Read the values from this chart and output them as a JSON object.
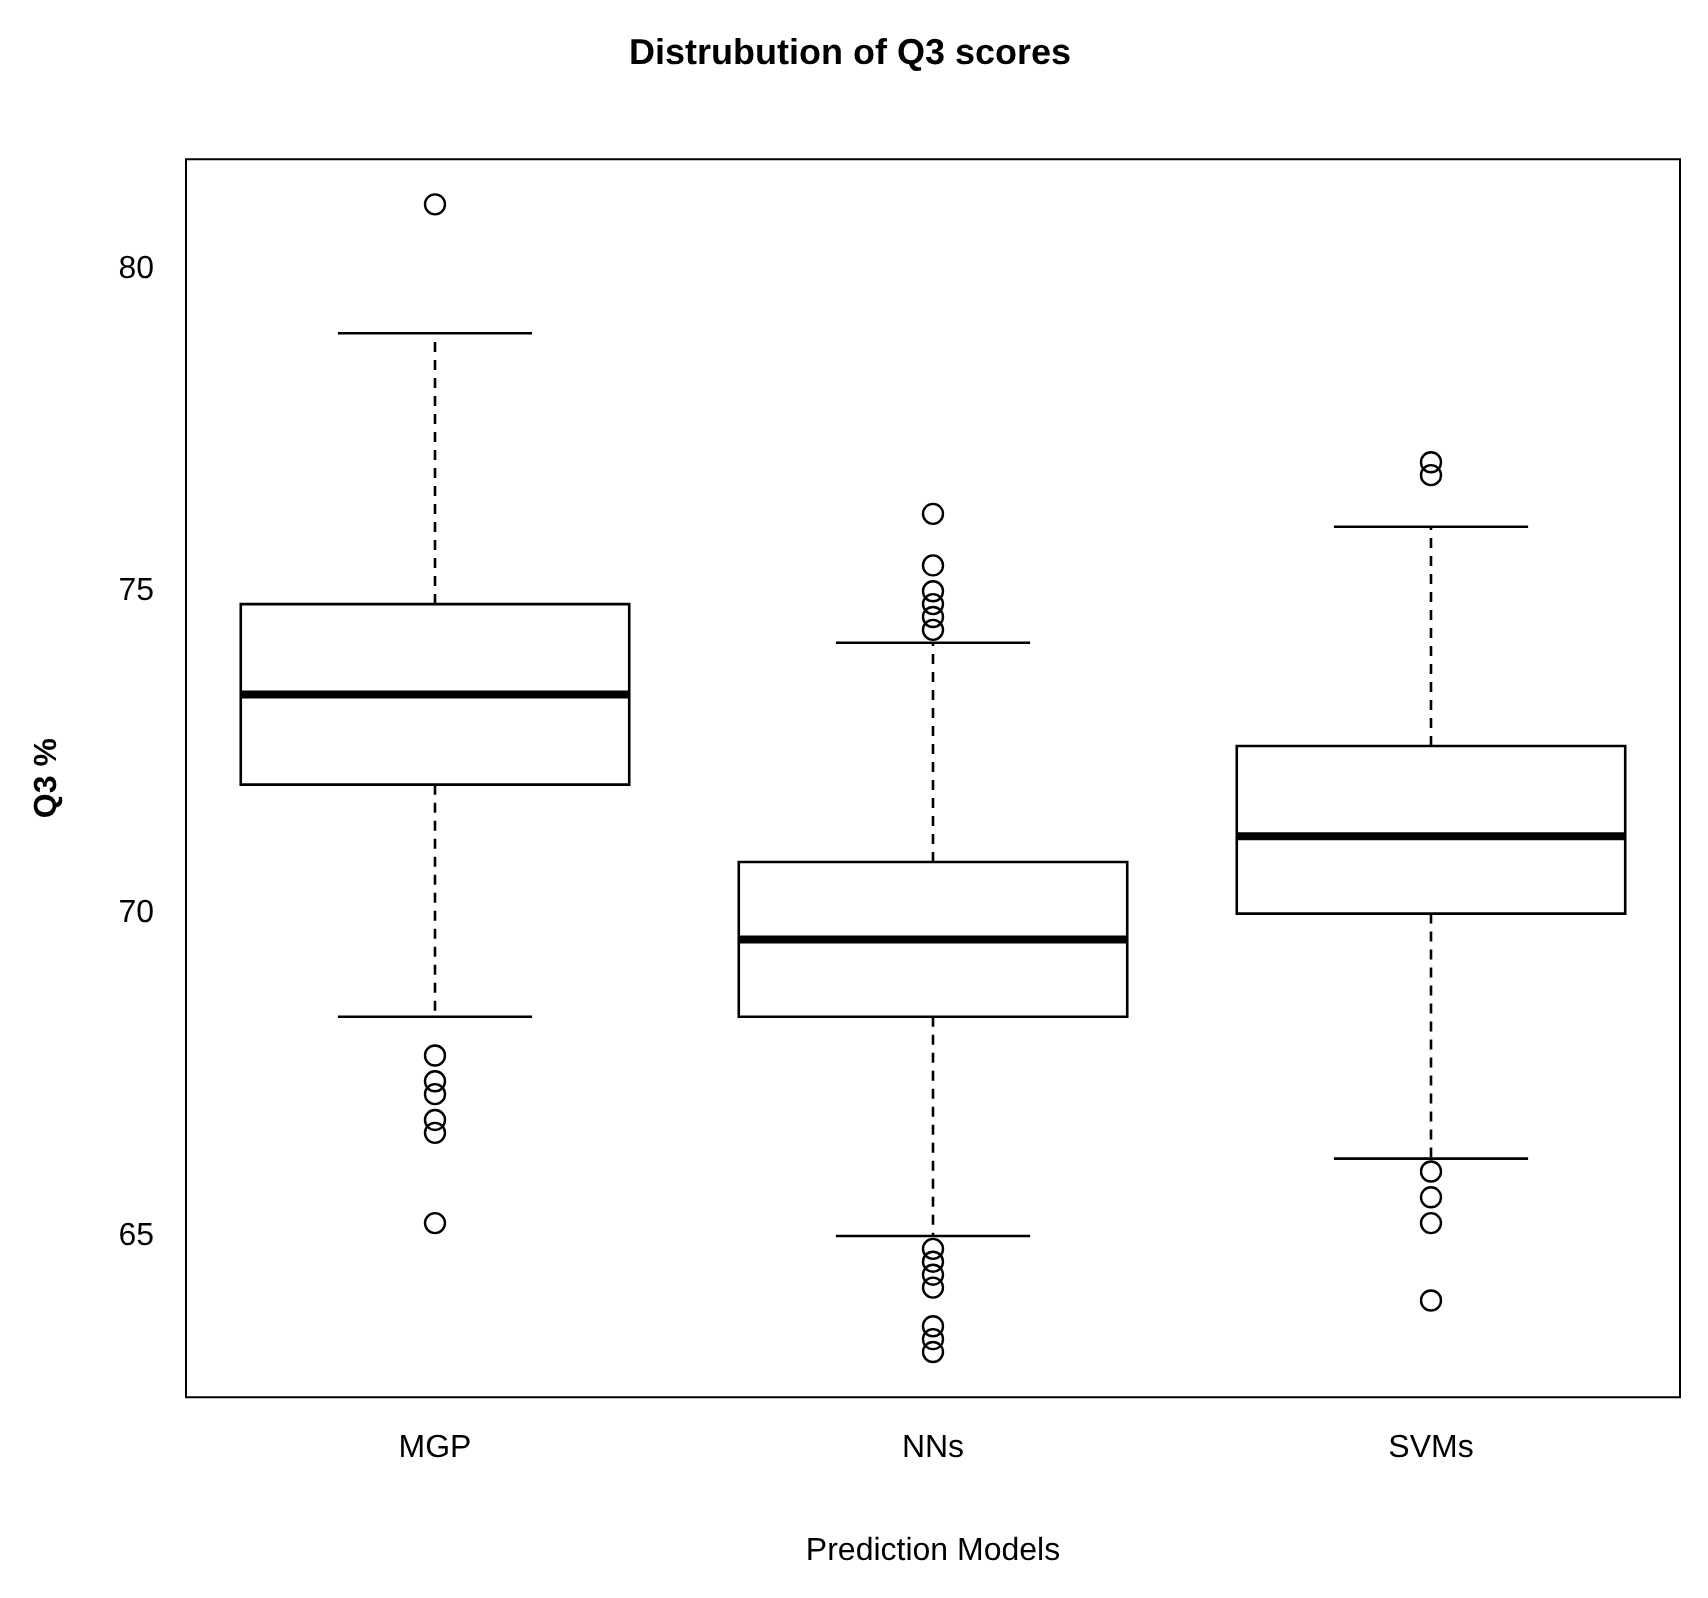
{
  "chart_data": {
    "type": "box",
    "title": "Distrubution of Q3 scores",
    "xlabel": "Prediction Models",
    "ylabel": "Q3 %",
    "categories": [
      "MGP",
      "NNs",
      "SVMs"
    ],
    "boxes": [
      {
        "low": 68.4,
        "q1": 72.0,
        "median": 73.4,
        "q3": 74.8,
        "high": 79.0,
        "outliers": [
          81.0,
          67.8,
          67.4,
          67.2,
          66.8,
          66.6,
          65.2
        ]
      },
      {
        "low": 65.0,
        "q1": 68.4,
        "median": 69.6,
        "q3": 70.8,
        "high": 74.2,
        "outliers": [
          76.2,
          75.4,
          75.0,
          74.8,
          74.6,
          74.4,
          64.8,
          64.6,
          64.4,
          64.2,
          63.6,
          63.4,
          63.2
        ]
      },
      {
        "low": 66.2,
        "q1": 70.0,
        "median": 71.2,
        "q3": 72.6,
        "high": 76.0,
        "outliers": [
          77.0,
          76.8,
          66.0,
          65.6,
          65.2,
          64.0
        ]
      }
    ],
    "color": "#000000",
    "ylim": [
      62.5,
      81.7
    ],
    "yticks": [
      65,
      70,
      75,
      80
    ],
    "grid": false,
    "legend": false
  }
}
